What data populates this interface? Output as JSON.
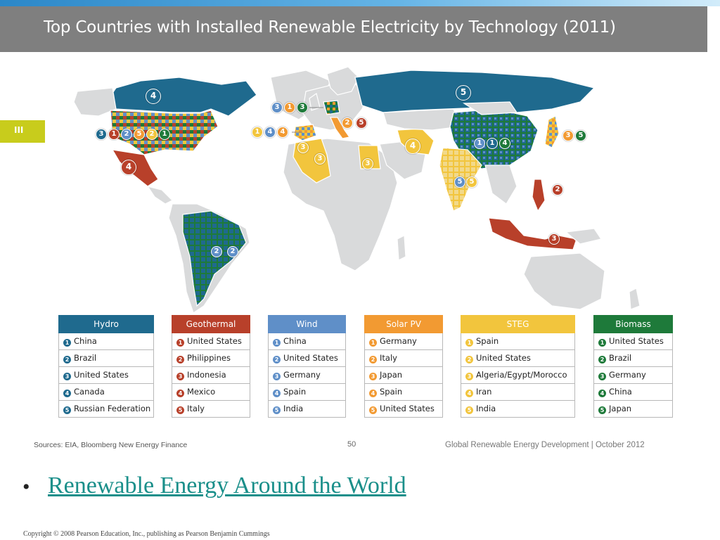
{
  "header": {
    "title": "Top Countries with Installed Renewable Electricity by Technology (2011)",
    "side_tab": "III"
  },
  "colors": {
    "hydro": "#1f6a8e",
    "geothermal": "#b8402a",
    "wind": "#5f8fc8",
    "solar_pv": "#f29a32",
    "steg": "#f2c53d",
    "biomass": "#1e7a3a",
    "land": "#d9dadb",
    "title_bar": "#7f7f7f"
  },
  "legend": [
    {
      "name": "Hydro",
      "items": [
        "China",
        "Brazil",
        "United States",
        "Canada",
        "Russian Federation"
      ]
    },
    {
      "name": "Geothermal",
      "items": [
        "United States",
        "Philippines",
        "Indonesia",
        "Mexico",
        "Italy"
      ]
    },
    {
      "name": "Wind",
      "items": [
        "China",
        "United States",
        "Germany",
        "Spain",
        "India"
      ]
    },
    {
      "name": "Solar PV",
      "items": [
        "Germany",
        "Italy",
        "Japan",
        "Spain",
        "United States"
      ]
    },
    {
      "name": "STEG",
      "items": [
        "Spain",
        "United States",
        "Algeria/Egypt/Morocco",
        "Iran",
        "India"
      ]
    },
    {
      "name": "Biomass",
      "items": [
        "United States",
        "Brazil",
        "Germany",
        "China",
        "Japan"
      ]
    }
  ],
  "markers": {
    "canada": "4",
    "russia": "5",
    "usa": [
      "3",
      "1",
      "2",
      "5",
      "2",
      "1"
    ],
    "mexico": "4",
    "brazil": [
      "2",
      "2"
    ],
    "germany": [
      "3",
      "1",
      "3"
    ],
    "italy": [
      "2",
      "5"
    ],
    "spain": [
      "1",
      "4",
      "4"
    ],
    "algeria": "3",
    "n_africa": "3",
    "egypt": "3",
    "iran": "4",
    "china": [
      "1",
      "1",
      "4"
    ],
    "india": [
      "5",
      "5"
    ],
    "japan": [
      "3",
      "5"
    ],
    "philippines": "2",
    "indonesia": "3"
  },
  "footer": {
    "source": "Sources: EIA, Bloomberg New Energy Finance",
    "page": "50",
    "right": "Global Renewable Energy Development  |  October 2012"
  },
  "bullet_link": "Renewable Energy Around the World",
  "copyright": "Copyright © 2008 Pearson Education, Inc., publishing as Pearson Benjamin Cummings"
}
